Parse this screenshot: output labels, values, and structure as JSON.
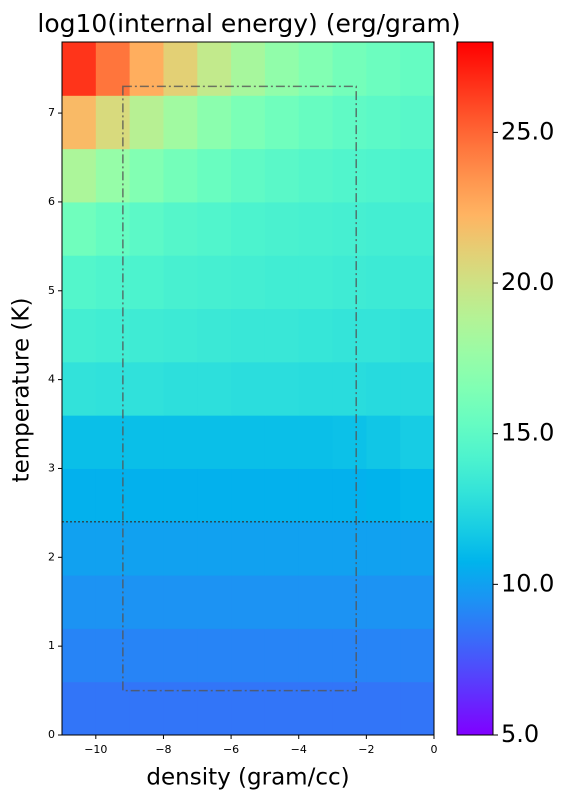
{
  "chart_data": {
    "type": "heatmap",
    "title": "log10(internal energy) (erg/gram)",
    "x_label": "density (gram/cc)",
    "y_label": "temperature (K)",
    "xlim": [
      -11,
      0
    ],
    "ylim": [
      0,
      7.8
    ],
    "xticks": [
      {
        "value": -10,
        "label": "−10"
      },
      {
        "value": -8,
        "label": "−8"
      },
      {
        "value": -6,
        "label": "−6"
      },
      {
        "value": -4,
        "label": "−4"
      },
      {
        "value": -2,
        "label": "−2"
      },
      0
    ],
    "yticks": [
      0,
      1,
      2,
      3,
      4,
      5,
      6,
      7
    ],
    "xbins": [
      -11,
      -10,
      -9,
      -8,
      -7,
      -6,
      -5,
      -4,
      -3,
      -2,
      -1,
      0
    ],
    "ybins": [
      0,
      0.6,
      1.2,
      1.8,
      2.4,
      3.0,
      3.6,
      4.2,
      4.8,
      5.4,
      6.0,
      6.6,
      7.2,
      7.8
    ],
    "z": [
      [
        8.5,
        8.5,
        8.5,
        8.5,
        8.5,
        8.5,
        8.5,
        8.5,
        8.5,
        8.5,
        8.5
      ],
      [
        9.0,
        9.0,
        9.0,
        9.0,
        9.0,
        9.0,
        9.0,
        9.0,
        9.0,
        9.0,
        9.0
      ],
      [
        9.5,
        9.5,
        9.5,
        9.5,
        9.5,
        9.5,
        9.5,
        9.5,
        9.5,
        9.5,
        9.5
      ],
      [
        10.0,
        10.0,
        10.0,
        10.0,
        10.0,
        10.0,
        10.0,
        10.0,
        10.0,
        10.0,
        10.0
      ],
      [
        10.6,
        10.6,
        10.6,
        10.6,
        10.6,
        10.6,
        10.6,
        10.6,
        10.6,
        10.7,
        10.9
      ],
      [
        11.2,
        11.2,
        11.2,
        11.2,
        11.2,
        11.2,
        11.2,
        11.2,
        11.3,
        11.5,
        11.8
      ],
      [
        13.0,
        12.9,
        12.9,
        12.8,
        12.8,
        12.7,
        12.7,
        12.6,
        12.6,
        12.5,
        12.5
      ],
      [
        13.8,
        13.7,
        13.6,
        13.5,
        13.4,
        13.3,
        13.3,
        13.2,
        13.1,
        13.1,
        13.0
      ],
      [
        14.5,
        14.3,
        14.2,
        14.0,
        13.9,
        13.8,
        13.7,
        13.7,
        13.6,
        13.5,
        13.5
      ],
      [
        15.8,
        15.3,
        14.9,
        14.6,
        14.4,
        14.2,
        14.1,
        14.0,
        13.9,
        13.8,
        13.8
      ],
      [
        18.5,
        17.5,
        16.6,
        16.0,
        15.5,
        15.1,
        14.8,
        14.6,
        14.4,
        14.3,
        14.2
      ],
      [
        22.0,
        20.5,
        19.0,
        18.0,
        17.0,
        16.3,
        15.8,
        15.4,
        15.1,
        14.9,
        14.7
      ],
      [
        26.5,
        24.5,
        22.5,
        21.0,
        19.5,
        18.3,
        17.3,
        16.6,
        16.0,
        15.6,
        15.3
      ]
    ],
    "colormap": "rainbow",
    "clim": [
      5,
      28
    ],
    "cticks": [
      {
        "value": 5,
        "label": "5.0"
      },
      {
        "value": 10,
        "label": "10.0"
      },
      {
        "value": 15,
        "label": "15.0"
      },
      {
        "value": 20,
        "label": "20.0"
      },
      {
        "value": 25,
        "label": "25.0"
      }
    ],
    "box": {
      "x": [
        -9.2,
        -2.3
      ],
      "y": [
        0.5,
        7.3
      ]
    },
    "hline": 2.4
  }
}
